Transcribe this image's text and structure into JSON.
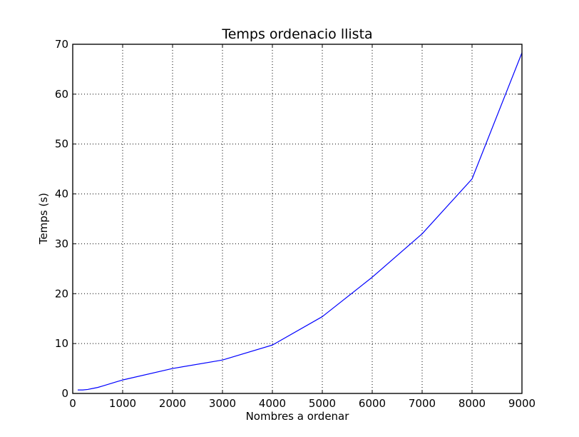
{
  "chart_data": {
    "type": "line",
    "title": "Temps ordenacio llista",
    "xlabel": "Nombres a ordenar",
    "ylabel": "Temps (s)",
    "xlim": [
      0,
      9000
    ],
    "ylim": [
      0,
      70
    ],
    "xticks": [
      0,
      1000,
      2000,
      3000,
      4000,
      5000,
      6000,
      7000,
      8000,
      9000
    ],
    "yticks": [
      0,
      10,
      20,
      30,
      40,
      50,
      60,
      70
    ],
    "grid": true,
    "series": [
      {
        "color": "#0000ff",
        "x": [
          100,
          200,
          300,
          400,
          500,
          600,
          700,
          800,
          900,
          1000,
          2000,
          3000,
          4000,
          5000,
          6000,
          7000,
          8000,
          9000
        ],
        "y": [
          0.7,
          0.7,
          0.8,
          1.0,
          1.2,
          1.5,
          1.8,
          2.1,
          2.4,
          2.7,
          5.0,
          6.7,
          9.7,
          15.4,
          23.3,
          32.0,
          43.0,
          68.3
        ]
      }
    ]
  }
}
